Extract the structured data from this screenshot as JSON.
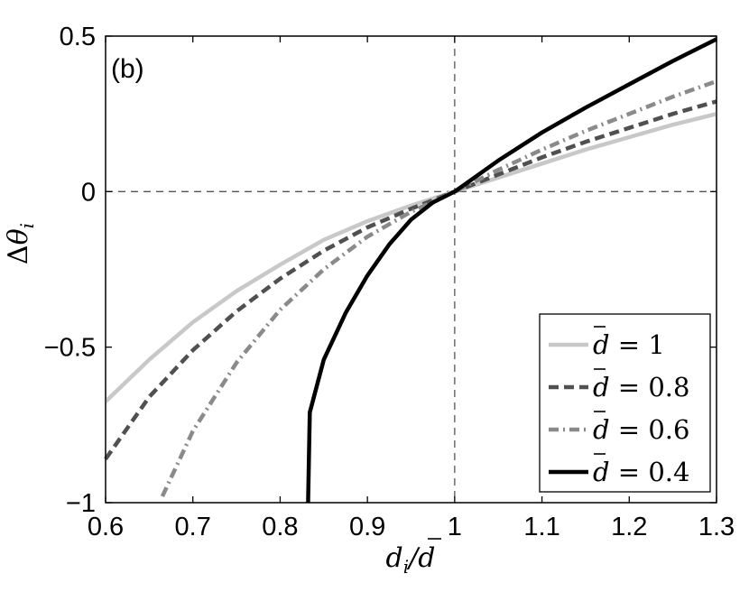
{
  "chart_data": {
    "type": "line",
    "panel_label": "(b)",
    "xlabel": "d_i / d̄",
    "ylabel": "Δθ_i",
    "xlim": [
      0.6,
      1.3
    ],
    "ylim": [
      -1,
      0.5
    ],
    "x_ticks": [
      0.6,
      0.7,
      0.8,
      0.9,
      1,
      1.1,
      1.2,
      1.3
    ],
    "x_tick_labels": [
      "0.6",
      "0.7",
      "0.8",
      "0.9",
      "1",
      "1.1",
      "1.2",
      "1.3"
    ],
    "y_ticks": [
      -1,
      -0.5,
      0,
      0.5
    ],
    "y_tick_labels": [
      "−1",
      "−0.5",
      "0",
      "0.5"
    ],
    "grid": false,
    "reference_lines": [
      {
        "orientation": "vertical",
        "value": 1,
        "style": "dashed"
      },
      {
        "orientation": "horizontal",
        "value": 0,
        "style": "dashed"
      }
    ],
    "legend_placement": "bottom-right",
    "series": [
      {
        "name": "d̄ = 1",
        "legend_value": "1",
        "color": "#c8c8c8",
        "style": "solid",
        "x": [
          0.6,
          0.65,
          0.7,
          0.75,
          0.8,
          0.85,
          0.9,
          0.95,
          1.0,
          1.05,
          1.1,
          1.15,
          1.2,
          1.25,
          1.3
        ],
        "y": [
          -0.675,
          -0.54,
          -0.42,
          -0.32,
          -0.235,
          -0.155,
          -0.095,
          -0.045,
          0.0,
          0.045,
          0.09,
          0.135,
          0.175,
          0.215,
          0.25
        ]
      },
      {
        "name": "d̄ = 0.8",
        "legend_value": "0.8",
        "color": "#505050",
        "style": "dashed",
        "x": [
          0.6,
          0.65,
          0.7,
          0.75,
          0.8,
          0.85,
          0.9,
          0.95,
          1.0,
          1.05,
          1.1,
          1.15,
          1.2,
          1.25,
          1.3
        ],
        "y": [
          -0.86,
          -0.66,
          -0.51,
          -0.385,
          -0.28,
          -0.19,
          -0.115,
          -0.055,
          0.0,
          0.055,
          0.11,
          0.16,
          0.205,
          0.25,
          0.29
        ]
      },
      {
        "name": "d̄ = 0.6",
        "legend_value": "0.6",
        "color": "#8a8a8a",
        "style": "dashdot",
        "x": [
          0.665,
          0.7,
          0.75,
          0.8,
          0.85,
          0.9,
          0.95,
          1.0,
          1.05,
          1.1,
          1.15,
          1.2,
          1.25,
          1.3
        ],
        "y": [
          -0.98,
          -0.77,
          -0.55,
          -0.38,
          -0.25,
          -0.145,
          -0.065,
          0.0,
          0.07,
          0.135,
          0.195,
          0.25,
          0.305,
          0.355
        ]
      },
      {
        "name": "d̄ = 0.4",
        "legend_value": "0.4",
        "color": "#000000",
        "style": "solid",
        "x": [
          0.832,
          0.834,
          0.85,
          0.875,
          0.9,
          0.925,
          0.95,
          0.975,
          1.0,
          1.05,
          1.1,
          1.15,
          1.2,
          1.25,
          1.3
        ],
        "y": [
          -1.0,
          -0.71,
          -0.54,
          -0.39,
          -0.27,
          -0.17,
          -0.09,
          -0.035,
          0.0,
          0.1,
          0.19,
          0.27,
          0.345,
          0.42,
          0.49
        ]
      }
    ]
  }
}
